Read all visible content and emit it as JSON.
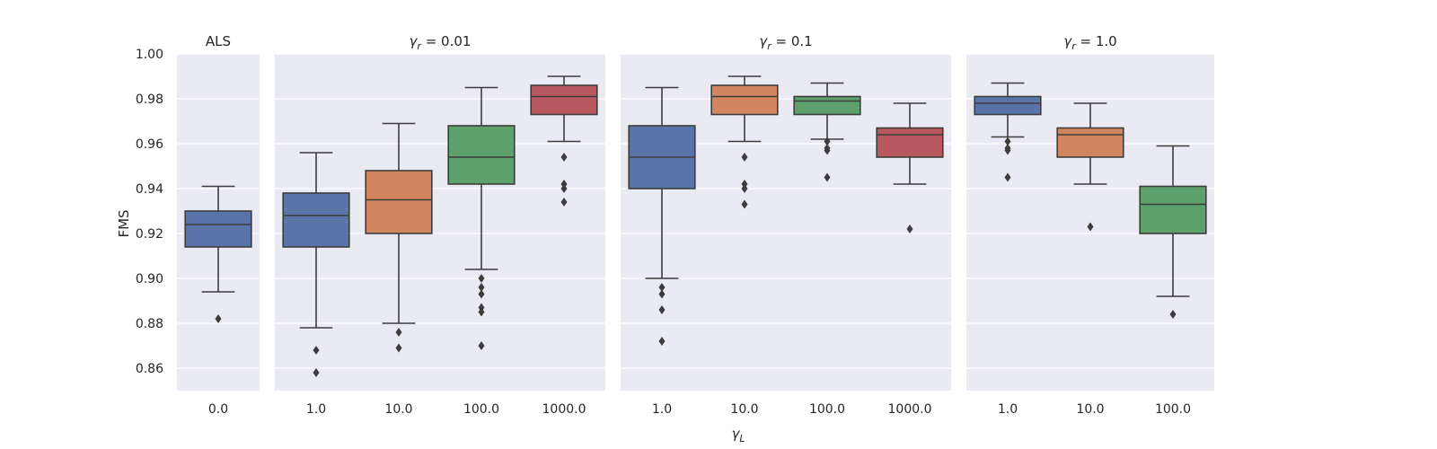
{
  "chart_data": {
    "type": "box",
    "ylabel": "FMS",
    "xlabel": "γ_L",
    "ylim": [
      0.85,
      1.0
    ],
    "yticks": [
      0.86,
      0.88,
      0.9,
      0.92,
      0.94,
      0.96,
      0.98,
      1.0
    ],
    "ytick_labels": [
      "0.86",
      "0.88",
      "0.90",
      "0.92",
      "0.94",
      "0.96",
      "0.98",
      "1.00"
    ],
    "colors": {
      "c1": "#5874a9",
      "c2": "#d1865f",
      "c3": "#5da06c",
      "c4": "#b9575f"
    },
    "panels": [
      {
        "title": "ALS",
        "title_math": false,
        "categories": [
          "0.0"
        ],
        "boxes": [
          {
            "color": "c1",
            "whislo": 0.894,
            "q1": 0.914,
            "med": 0.924,
            "q3": 0.93,
            "whishi": 0.941,
            "fliers": [
              0.882
            ]
          }
        ]
      },
      {
        "title": "γr = 0.01",
        "title_math": true,
        "title_value": "0.01",
        "categories": [
          "1.0",
          "10.0",
          "100.0",
          "1000.0"
        ],
        "boxes": [
          {
            "color": "c1",
            "whislo": 0.878,
            "q1": 0.914,
            "med": 0.928,
            "q3": 0.938,
            "whishi": 0.956,
            "fliers": [
              0.868,
              0.858
            ]
          },
          {
            "color": "c2",
            "whislo": 0.88,
            "q1": 0.92,
            "med": 0.935,
            "q3": 0.948,
            "whishi": 0.969,
            "fliers": [
              0.876,
              0.869
            ]
          },
          {
            "color": "c3",
            "whislo": 0.904,
            "q1": 0.942,
            "med": 0.954,
            "q3": 0.968,
            "whishi": 0.985,
            "fliers": [
              0.9,
              0.896,
              0.893,
              0.887,
              0.885,
              0.87
            ]
          },
          {
            "color": "c4",
            "whislo": 0.961,
            "q1": 0.973,
            "med": 0.981,
            "q3": 0.986,
            "whishi": 0.99,
            "fliers": [
              0.954,
              0.942,
              0.94,
              0.934
            ]
          }
        ]
      },
      {
        "title": "γr = 0.1",
        "title_math": true,
        "title_value": "0.1",
        "categories": [
          "1.0",
          "10.0",
          "100.0",
          "1000.0"
        ],
        "boxes": [
          {
            "color": "c1",
            "whislo": 0.9,
            "q1": 0.94,
            "med": 0.954,
            "q3": 0.968,
            "whishi": 0.985,
            "fliers": [
              0.896,
              0.893,
              0.886,
              0.872
            ]
          },
          {
            "color": "c2",
            "whislo": 0.961,
            "q1": 0.973,
            "med": 0.981,
            "q3": 0.986,
            "whishi": 0.99,
            "fliers": [
              0.954,
              0.942,
              0.94,
              0.933
            ]
          },
          {
            "color": "c3",
            "whislo": 0.962,
            "q1": 0.973,
            "med": 0.979,
            "q3": 0.981,
            "whishi": 0.987,
            "fliers": [
              0.961,
              0.958,
              0.957,
              0.945
            ]
          },
          {
            "color": "c4",
            "whislo": 0.942,
            "q1": 0.954,
            "med": 0.964,
            "q3": 0.967,
            "whishi": 0.978,
            "fliers": [
              0.922
            ]
          }
        ]
      },
      {
        "title": "γr = 1.0",
        "title_math": true,
        "title_value": "1.0",
        "categories": [
          "1.0",
          "10.0",
          "100.0"
        ],
        "boxes": [
          {
            "color": "c1",
            "whislo": 0.963,
            "q1": 0.973,
            "med": 0.978,
            "q3": 0.981,
            "whishi": 0.987,
            "fliers": [
              0.961,
              0.958,
              0.957,
              0.945
            ]
          },
          {
            "color": "c2",
            "whislo": 0.942,
            "q1": 0.954,
            "med": 0.964,
            "q3": 0.967,
            "whishi": 0.978,
            "fliers": [
              0.923
            ]
          },
          {
            "color": "c3",
            "whislo": 0.892,
            "q1": 0.92,
            "med": 0.933,
            "q3": 0.941,
            "whishi": 0.959,
            "fliers": [
              0.884
            ]
          }
        ]
      }
    ]
  }
}
